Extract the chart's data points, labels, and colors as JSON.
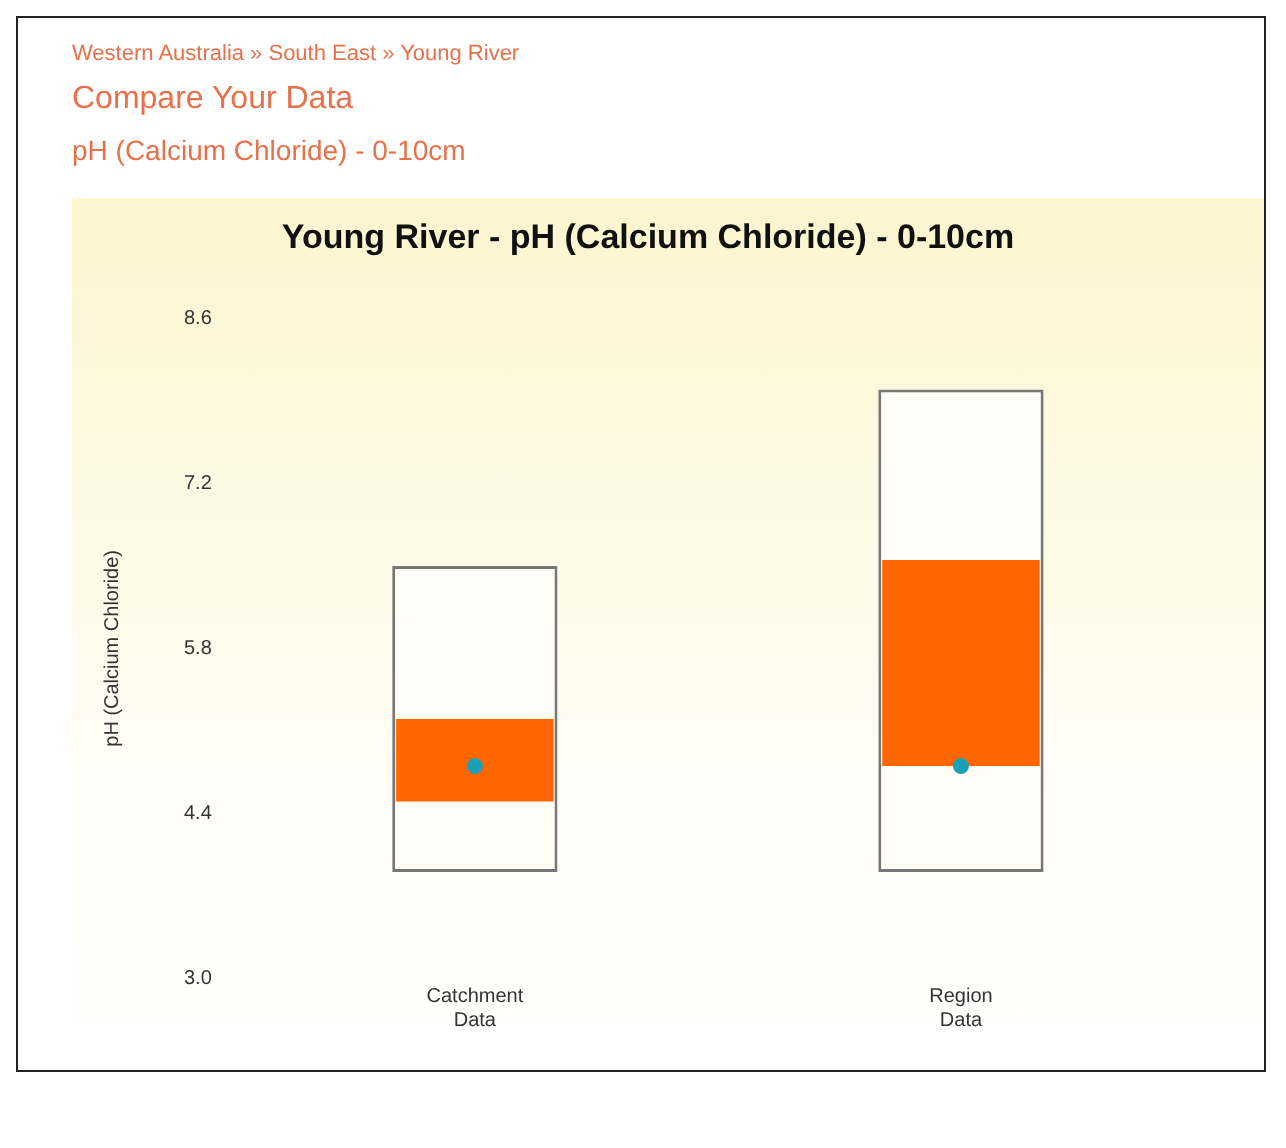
{
  "chart_data": {
    "type": "bar",
    "title": "Young River - pH (Calcium Chloride) - 0-10cm",
    "annotations": [
      "Western Australia » South East » Young River",
      "Compare Your Data",
      "pH (Calcium Chloride) - 0-10cm"
    ],
    "ylabel": "pH (Calcium Chloride)",
    "categories": [
      "Catchment Data",
      "Region Data"
    ],
    "series": [
      {
        "color": "#fffdf5",
        "base": [
          3.9,
          3.9
        ],
        "values": [
          2.6,
          4.1
        ]
      },
      {
        "color": "#ff6600",
        "base": [
          4.5,
          4.8
        ],
        "values": [
          0.7,
          1.75
        ]
      },
      {
        "type": "scatter",
        "color": "#1a9fb8",
        "x": [
          "Catchment Data",
          "Region Data"
        ],
        "values": [
          4.8,
          4.8
        ]
      }
    ],
    "ylim": [
      3,
      8.6
    ],
    "yticks": [
      {
        "value": 3,
        "label": "3.0"
      },
      4.4,
      5.8,
      7.2,
      8.6
    ],
    "grid": false,
    "legend": false,
    "marker": "circle"
  }
}
